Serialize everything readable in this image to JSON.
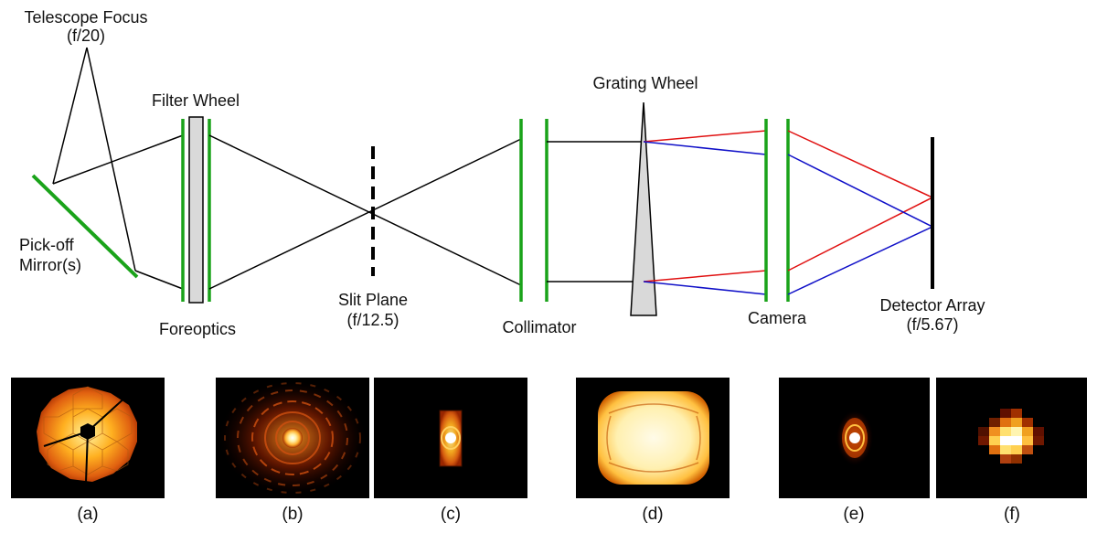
{
  "labels": {
    "telescope_focus": "Telescope Focus",
    "telescope_focus_f": "(f/20)",
    "filter_wheel": "Filter Wheel",
    "pickoff_line1": "Pick-off",
    "pickoff_line2": "Mirror(s)",
    "foreoptics": "Foreoptics",
    "slit_plane": "Slit Plane",
    "slit_plane_f": "(f/12.5)",
    "collimator": "Collimator",
    "grating_wheel": "Grating Wheel",
    "camera": "Camera",
    "detector_array": "Detector Array",
    "detector_array_f": "(f/5.67)"
  },
  "panels": [
    {
      "caption": "(a)",
      "content": "segmented-pupil-image"
    },
    {
      "caption": "(b)",
      "content": "psf-diffraction-pattern"
    },
    {
      "caption": "(c)",
      "content": "sliced-psf"
    },
    {
      "caption": "(d)",
      "content": "collimated-pupil"
    },
    {
      "caption": "(e)",
      "content": "camera-psf"
    },
    {
      "caption": "(f)",
      "content": "pixelated-detector-psf"
    }
  ],
  "colors": {
    "optic_green": "#1aa31a",
    "ray_black": "#000000",
    "ray_red": "#e01010",
    "ray_blue": "#1010c8",
    "component_gray": "#d9d9d9",
    "panel_bg": "#000000"
  }
}
